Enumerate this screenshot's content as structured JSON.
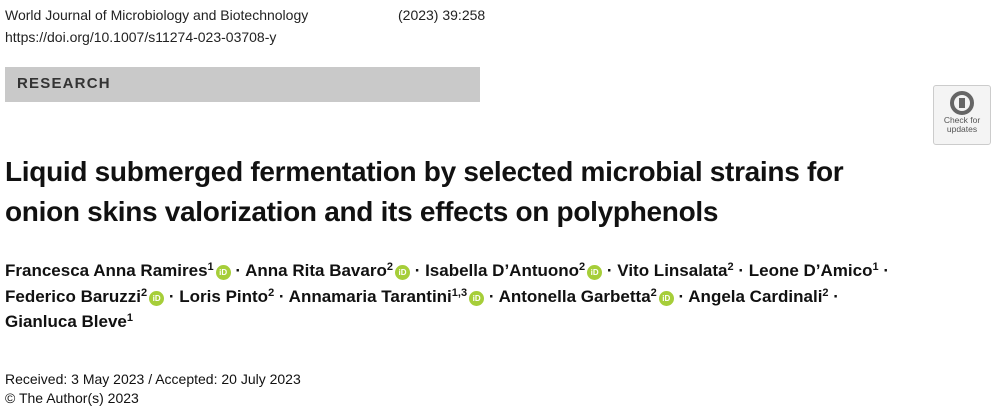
{
  "header": {
    "journal": "World Journal of Microbiology and Biotechnology",
    "citation": "(2023) 39:258",
    "doi": "https://doi.org/10.1007/s11274-023-03708-y"
  },
  "section_label": "RESEARCH",
  "check_updates": {
    "line1": "Check for",
    "line2": "updates"
  },
  "title": {
    "line1": "Liquid submerged fermentation by selected microbial strains for",
    "line2": "onion skins valorization and its effects on polyphenols"
  },
  "authors": [
    {
      "name": "Francesca Anna Ramires",
      "aff": "1",
      "orcid": true
    },
    {
      "name": "Anna Rita Bavaro",
      "aff": "2",
      "orcid": true
    },
    {
      "name": "Isabella D’Antuono",
      "aff": "2",
      "orcid": true
    },
    {
      "name": "Vito Linsalata",
      "aff": "2",
      "orcid": false
    },
    {
      "name": "Leone D’Amico",
      "aff": "1",
      "orcid": false
    },
    {
      "name": "Federico Baruzzi",
      "aff": "2",
      "orcid": true
    },
    {
      "name": "Loris Pinto",
      "aff": "2",
      "orcid": false
    },
    {
      "name": "Annamaria Tarantini",
      "aff": "1,3",
      "orcid": true
    },
    {
      "name": "Antonella Garbetta",
      "aff": "2",
      "orcid": true
    },
    {
      "name": "Angela Cardinali",
      "aff": "2",
      "orcid": false
    },
    {
      "name": "Gianluca Bleve",
      "aff": "1",
      "orcid": false
    }
  ],
  "orcid_label": "iD",
  "separator": " · ",
  "dates": "Received: 3 May 2023 / Accepted: 20 July 2023",
  "copyright": "© The Author(s) 2023",
  "colors": {
    "orcid": "#a6ce39",
    "section_bar": "#c9c9c9"
  }
}
